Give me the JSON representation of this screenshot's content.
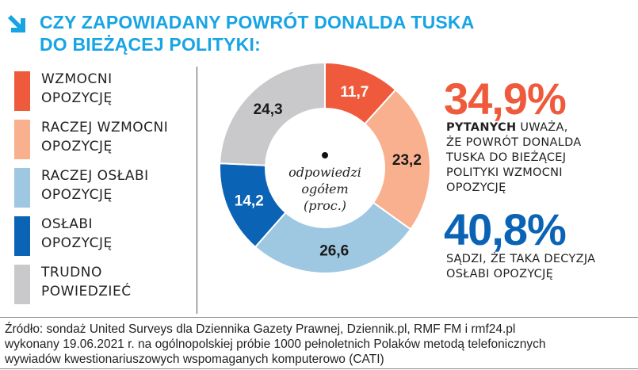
{
  "header": {
    "title_line1": "CZY ZAPOWIADANY POWRÓT DONALDA TUSKA",
    "title_line2": "DO BIEŻĄCEJ POLITYKI:",
    "icon": "arrow-down-right-icon",
    "title_color": "#17a4e4"
  },
  "chart_data": {
    "type": "pie",
    "donut": true,
    "center_label": [
      "odpowiedzi",
      "ogółem",
      "(proc.)"
    ],
    "categories": [
      "WZMOCNI OPOZYCJĘ",
      "RACZEJ WZMOCNI OPOZYCJĘ",
      "RACZEJ OSŁABI OPOZYCJĘ",
      "OSŁABI OPOZYCJĘ",
      "TRUDNO POWIEDZIEĆ"
    ],
    "legend_lines": [
      [
        "WZMOCNI",
        "OPOZYCJĘ"
      ],
      [
        "RACZEJ WZMOCNI",
        "OPOZYCJĘ"
      ],
      [
        "RACZEJ OSŁABI",
        "OPOZYCJĘ"
      ],
      [
        "OSŁABI",
        "OPOZYCJĘ"
      ],
      [
        "TRUDNO",
        "POWIEDZIEĆ"
      ]
    ],
    "values": [
      11.7,
      23.2,
      26.6,
      14.2,
      24.3
    ],
    "labels": [
      "11,7",
      "23,2",
      "26,6",
      "14,2",
      "24,3"
    ],
    "colors": [
      "#ef5a3c",
      "#f8b08e",
      "#9ec7e1",
      "#0b63b6",
      "#c9c9cb"
    ],
    "label_colors": [
      "#ffffff",
      "#1a1a1a",
      "#1a1a1a",
      "#ffffff",
      "#1a1a1a"
    ],
    "legend_placement": "left"
  },
  "highlights": [
    {
      "value": "34,9%",
      "color": "#ef5a3c",
      "bold": "PYTANYCH",
      "lines": [
        " UWAŻA,",
        "ŻE POWRÓT DONALDA",
        "TUSKA DO BIEŻĄCEJ",
        "POLITYKI WZMOCNI",
        "OPOZYCJĘ"
      ]
    },
    {
      "value": "40,8%",
      "color": "#0b63b6",
      "lines": [
        "SĄDZI, ŻE TAKA DECYZJA",
        "OSŁABI OPOZYCJĘ"
      ]
    }
  ],
  "source": [
    "Źródło: sondaż United Surveys dla Dziennika Gazety Prawnej, Dziennik.pl, RMF FM i rmf24.pl",
    "wykonany 19.06.2021 r. na ogólnopolskiej próbie 1000 pełnoletnich Polaków metodą telefonicznych",
    "wywiadów kwestionariuszowych wspomaganych komputerowo (CATI)"
  ]
}
